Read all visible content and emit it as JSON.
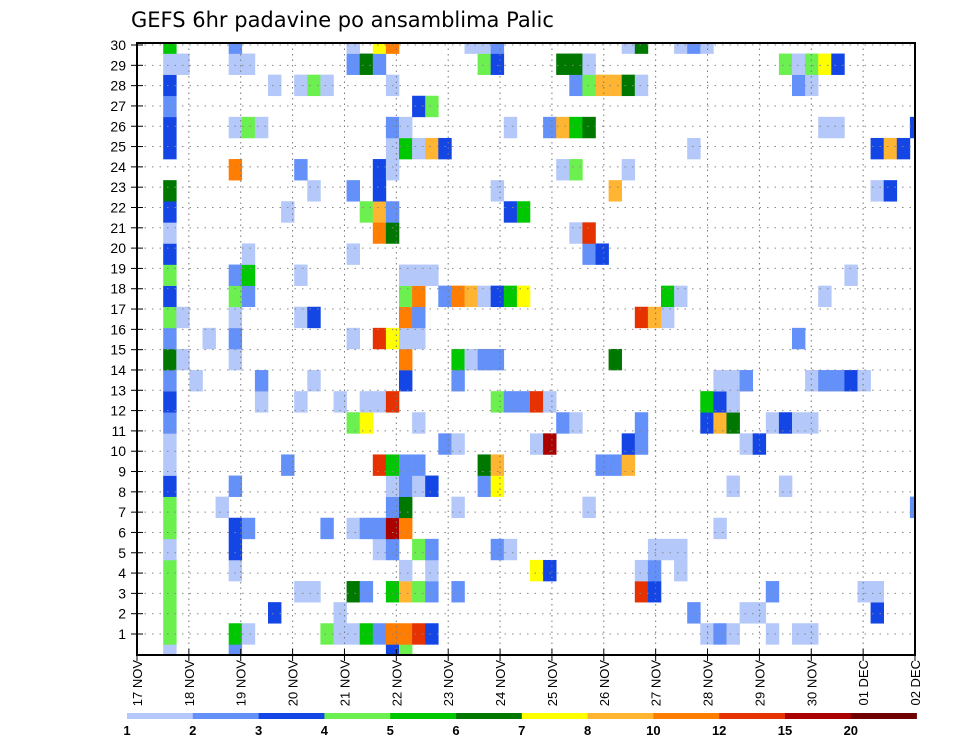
{
  "title": "GEFS 6hr padavine po ansamblima Palic",
  "chart_data": {
    "type": "heatmap",
    "title": "GEFS 6hr padavine po ansamblima Palic",
    "xlabel": "",
    "ylabel": "",
    "x_step": "6hr",
    "x_labels": [
      "17 NOV",
      "18 NOV",
      "19 NOV",
      "20 NOV",
      "21 NOV",
      "22 NOV",
      "23 NOV",
      "24 NOV",
      "25 NOV",
      "26 NOV",
      "27 NOV",
      "28 NOV",
      "29 NOV",
      "30 NOV",
      "01 DEC",
      "02 DEC"
    ],
    "y_labels": [
      "1",
      "2",
      "3",
      "4",
      "5",
      "6",
      "7",
      "8",
      "9",
      "10",
      "11",
      "12",
      "13",
      "14",
      "15",
      "16",
      "17",
      "18",
      "19",
      "20",
      "21",
      "22",
      "23",
      "24",
      "25",
      "26",
      "27",
      "28",
      "29",
      "30"
    ],
    "grid": true,
    "legend": {
      "placement": "bottom",
      "labels": [
        "1",
        "2",
        "3",
        "4",
        "5",
        "6",
        "7",
        "8",
        "10",
        "12",
        "15",
        "20"
      ],
      "colors": [
        "#b4c8fa",
        "#6490fa",
        "#1446e6",
        "#6cf050",
        "#00c800",
        "#007800",
        "#ffff00",
        "#ffb432",
        "#ff7d00",
        "#e63200",
        "#aa0000",
        "#700000"
      ]
    },
    "cell_format": "member -> list of [6hr step index from 17 NOV 00Z, color bin (1-based index into legend.colors)]",
    "cells": {
      "30": [
        [
          2,
          5
        ],
        [
          7,
          2
        ],
        [
          16,
          1
        ],
        [
          18,
          7
        ],
        [
          19,
          9
        ],
        [
          25,
          1
        ],
        [
          26,
          1
        ],
        [
          27,
          2
        ],
        [
          37,
          1
        ],
        [
          38,
          6
        ],
        [
          41,
          1
        ],
        [
          42,
          2
        ],
        [
          43,
          1
        ]
      ],
      "29": [
        [
          2,
          1
        ],
        [
          3,
          1
        ],
        [
          7,
          1
        ],
        [
          8,
          1
        ],
        [
          16,
          2
        ],
        [
          17,
          6
        ],
        [
          18,
          2
        ],
        [
          26,
          4
        ],
        [
          27,
          3
        ],
        [
          32,
          6
        ],
        [
          33,
          6
        ],
        [
          34,
          1
        ],
        [
          49,
          4
        ],
        [
          50,
          1
        ],
        [
          51,
          4
        ],
        [
          52,
          7
        ],
        [
          53,
          3
        ]
      ],
      "28": [
        [
          2,
          3
        ],
        [
          10,
          1
        ],
        [
          12,
          1
        ],
        [
          13,
          4
        ],
        [
          14,
          1
        ],
        [
          19,
          1
        ],
        [
          33,
          2
        ],
        [
          34,
          4
        ],
        [
          35,
          8
        ],
        [
          36,
          8
        ],
        [
          37,
          6
        ],
        [
          38,
          1
        ],
        [
          50,
          2
        ],
        [
          51,
          1
        ]
      ],
      "27": [
        [
          2,
          2
        ],
        [
          21,
          3
        ],
        [
          22,
          4
        ]
      ],
      "26": [
        [
          2,
          3
        ],
        [
          7,
          1
        ],
        [
          8,
          4
        ],
        [
          9,
          1
        ],
        [
          19,
          2
        ],
        [
          20,
          1
        ],
        [
          28,
          1
        ],
        [
          31,
          2
        ],
        [
          32,
          8
        ],
        [
          33,
          5
        ],
        [
          34,
          6
        ],
        [
          52,
          1
        ],
        [
          53,
          1
        ],
        [
          59,
          3
        ]
      ],
      "25": [
        [
          2,
          3
        ],
        [
          19,
          1
        ],
        [
          20,
          5
        ],
        [
          21,
          1
        ],
        [
          22,
          8
        ],
        [
          23,
          3
        ],
        [
          42,
          1
        ],
        [
          56,
          3
        ],
        [
          57,
          8
        ],
        [
          58,
          3
        ]
      ],
      "24": [
        [
          7,
          9
        ],
        [
          12,
          2
        ],
        [
          18,
          3
        ],
        [
          19,
          1
        ],
        [
          32,
          1
        ],
        [
          33,
          4
        ],
        [
          37,
          1
        ]
      ],
      "23": [
        [
          2,
          6
        ],
        [
          13,
          1
        ],
        [
          16,
          2
        ],
        [
          18,
          3
        ],
        [
          27,
          1
        ],
        [
          36,
          8
        ],
        [
          56,
          1
        ],
        [
          57,
          3
        ]
      ],
      "22": [
        [
          2,
          3
        ],
        [
          11,
          1
        ],
        [
          17,
          4
        ],
        [
          18,
          8
        ],
        [
          19,
          2
        ],
        [
          28,
          3
        ],
        [
          29,
          5
        ]
      ],
      "21": [
        [
          2,
          1
        ],
        [
          18,
          9
        ],
        [
          19,
          6
        ],
        [
          33,
          1
        ],
        [
          34,
          10
        ]
      ],
      "20": [
        [
          2,
          3
        ],
        [
          8,
          1
        ],
        [
          16,
          1
        ],
        [
          34,
          2
        ],
        [
          35,
          3
        ]
      ],
      "19": [
        [
          2,
          4
        ],
        [
          7,
          2
        ],
        [
          8,
          5
        ],
        [
          12,
          1
        ],
        [
          20,
          1
        ],
        [
          21,
          1
        ],
        [
          22,
          1
        ],
        [
          54,
          1
        ]
      ],
      "18": [
        [
          2,
          3
        ],
        [
          7,
          4
        ],
        [
          8,
          2
        ],
        [
          20,
          4
        ],
        [
          21,
          9
        ],
        [
          23,
          2
        ],
        [
          24,
          9
        ],
        [
          25,
          8
        ],
        [
          26,
          1
        ],
        [
          27,
          3
        ],
        [
          28,
          5
        ],
        [
          29,
          7
        ],
        [
          40,
          5
        ],
        [
          41,
          1
        ],
        [
          52,
          1
        ]
      ],
      "17": [
        [
          2,
          4
        ],
        [
          3,
          1
        ],
        [
          7,
          1
        ],
        [
          12,
          1
        ],
        [
          13,
          3
        ],
        [
          20,
          9
        ],
        [
          21,
          2
        ],
        [
          38,
          10
        ],
        [
          39,
          8
        ],
        [
          40,
          1
        ]
      ],
      "16": [
        [
          2,
          2
        ],
        [
          5,
          1
        ],
        [
          7,
          2
        ],
        [
          16,
          1
        ],
        [
          18,
          10
        ],
        [
          19,
          7
        ],
        [
          20,
          1
        ],
        [
          21,
          1
        ],
        [
          50,
          2
        ]
      ],
      "15": [
        [
          2,
          6
        ],
        [
          3,
          1
        ],
        [
          7,
          1
        ],
        [
          20,
          9
        ],
        [
          24,
          5
        ],
        [
          25,
          1
        ],
        [
          26,
          2
        ],
        [
          27,
          2
        ],
        [
          36,
          6
        ]
      ],
      "14": [
        [
          2,
          2
        ],
        [
          4,
          1
        ],
        [
          9,
          2
        ],
        [
          13,
          1
        ],
        [
          20,
          3
        ],
        [
          24,
          2
        ],
        [
          44,
          1
        ],
        [
          45,
          1
        ],
        [
          46,
          2
        ],
        [
          51,
          1
        ],
        [
          52,
          2
        ],
        [
          53,
          2
        ],
        [
          54,
          3
        ],
        [
          55,
          1
        ]
      ],
      "13": [
        [
          2,
          3
        ],
        [
          9,
          1
        ],
        [
          12,
          1
        ],
        [
          15,
          1
        ],
        [
          17,
          1
        ],
        [
          18,
          1
        ],
        [
          19,
          10
        ],
        [
          27,
          4
        ],
        [
          28,
          2
        ],
        [
          29,
          2
        ],
        [
          30,
          10
        ],
        [
          31,
          1
        ],
        [
          43,
          5
        ],
        [
          44,
          3
        ],
        [
          45,
          1
        ]
      ],
      "12": [
        [
          2,
          2
        ],
        [
          16,
          4
        ],
        [
          17,
          7
        ],
        [
          21,
          1
        ],
        [
          32,
          2
        ],
        [
          33,
          1
        ],
        [
          38,
          2
        ],
        [
          43,
          3
        ],
        [
          44,
          8
        ],
        [
          45,
          6
        ],
        [
          48,
          1
        ],
        [
          49,
          3
        ],
        [
          50,
          1
        ],
        [
          51,
          1
        ]
      ],
      "11": [
        [
          2,
          1
        ],
        [
          23,
          2
        ],
        [
          24,
          1
        ],
        [
          30,
          1
        ],
        [
          31,
          11
        ],
        [
          37,
          3
        ],
        [
          38,
          2
        ],
        [
          46,
          1
        ],
        [
          47,
          3
        ]
      ],
      "10": [
        [
          2,
          1
        ],
        [
          11,
          2
        ],
        [
          18,
          10
        ],
        [
          19,
          5
        ],
        [
          20,
          2
        ],
        [
          21,
          2
        ],
        [
          26,
          6
        ],
        [
          27,
          8
        ],
        [
          35,
          2
        ],
        [
          36,
          2
        ],
        [
          37,
          8
        ]
      ],
      "9": [
        [
          2,
          3
        ],
        [
          7,
          2
        ],
        [
          19,
          1
        ],
        [
          20,
          2
        ],
        [
          21,
          1
        ],
        [
          22,
          3
        ],
        [
          26,
          2
        ],
        [
          27,
          7
        ],
        [
          45,
          1
        ],
        [
          49,
          1
        ]
      ],
      "8": [
        [
          2,
          4
        ],
        [
          6,
          1
        ],
        [
          19,
          2
        ],
        [
          20,
          6
        ],
        [
          24,
          1
        ],
        [
          34,
          1
        ],
        [
          59,
          2
        ]
      ],
      "7": [
        [
          2,
          4
        ],
        [
          7,
          3
        ],
        [
          8,
          2
        ],
        [
          14,
          2
        ],
        [
          16,
          1
        ],
        [
          17,
          2
        ],
        [
          18,
          2
        ],
        [
          19,
          11
        ],
        [
          20,
          9
        ],
        [
          44,
          1
        ]
      ],
      "6": [
        [
          2,
          1
        ],
        [
          7,
          3
        ],
        [
          18,
          1
        ],
        [
          19,
          2
        ],
        [
          21,
          4
        ],
        [
          22,
          2
        ],
        [
          27,
          2
        ],
        [
          28,
          1
        ],
        [
          39,
          1
        ],
        [
          40,
          1
        ],
        [
          41,
          1
        ]
      ],
      "5": [
        [
          2,
          4
        ],
        [
          7,
          1
        ],
        [
          20,
          1
        ],
        [
          22,
          1
        ],
        [
          30,
          7
        ],
        [
          31,
          3
        ],
        [
          38,
          1
        ],
        [
          39,
          2
        ],
        [
          41,
          1
        ]
      ],
      "4": [
        [
          2,
          4
        ],
        [
          12,
          1
        ],
        [
          13,
          1
        ],
        [
          16,
          6
        ],
        [
          17,
          2
        ],
        [
          19,
          5
        ],
        [
          20,
          8
        ],
        [
          21,
          4
        ],
        [
          22,
          2
        ],
        [
          24,
          2
        ],
        [
          38,
          10
        ],
        [
          39,
          3
        ],
        [
          48,
          2
        ],
        [
          55,
          1
        ],
        [
          56,
          1
        ]
      ],
      "3": [
        [
          2,
          4
        ],
        [
          10,
          3
        ],
        [
          15,
          1
        ],
        [
          42,
          2
        ],
        [
          46,
          1
        ],
        [
          47,
          1
        ],
        [
          56,
          3
        ]
      ],
      "2": [
        [
          2,
          4
        ],
        [
          7,
          5
        ],
        [
          8,
          1
        ],
        [
          14,
          4
        ],
        [
          15,
          1
        ],
        [
          16,
          1
        ],
        [
          17,
          5
        ],
        [
          18,
          2
        ],
        [
          19,
          9
        ],
        [
          20,
          9
        ],
        [
          21,
          10
        ],
        [
          22,
          3
        ],
        [
          43,
          1
        ],
        [
          44,
          2
        ],
        [
          45,
          1
        ],
        [
          48,
          1
        ],
        [
          50,
          1
        ],
        [
          51,
          1
        ]
      ],
      "1": [
        [
          2,
          1
        ],
        [
          7,
          2
        ],
        [
          19,
          3
        ],
        [
          20,
          4
        ]
      ]
    }
  }
}
